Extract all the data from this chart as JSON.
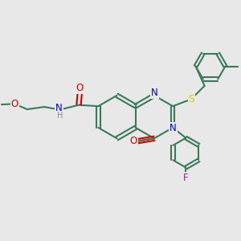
{
  "background_color": "#e8e8e8",
  "bond_color": "#3a7a5a",
  "bond_width": 1.5,
  "atom_colors": {
    "N": "#0000cc",
    "O": "#cc0000",
    "S": "#cccc00",
    "F": "#cc00cc",
    "H": "#888888",
    "C": "#3a7a5a"
  },
  "font_size_atom": 8.5,
  "font_size_small": 7.0
}
